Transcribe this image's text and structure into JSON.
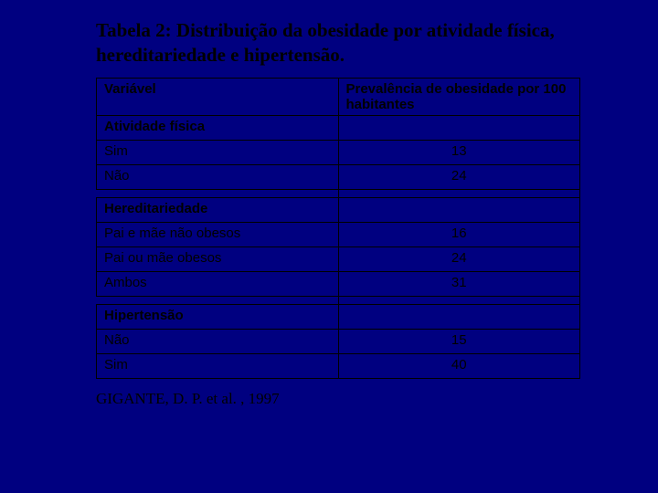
{
  "title": "Tabela 2: Distribuição da obesidade por atividade física, hereditariedade e hipertensão.",
  "headers": {
    "variable": "Variável",
    "prevalence": "Prevalência de obesidade por 100 habitantes"
  },
  "sections": {
    "activity": {
      "label": "Atividade física",
      "rows": {
        "sim": {
          "label": "Sim",
          "value": "13"
        },
        "nao": {
          "label": "Não",
          "value": "24"
        }
      }
    },
    "heredity": {
      "label": "Hereditariedade",
      "rows": {
        "none": {
          "label": "Pai e mãe não obesos",
          "value": "16"
        },
        "one": {
          "label": "Pai ou mãe obesos",
          "value": "24"
        },
        "both": {
          "label": "Ambos",
          "value": "31"
        }
      }
    },
    "hypertension": {
      "label": "Hipertensão",
      "rows": {
        "nao": {
          "label": "Não",
          "value": "15"
        },
        "sim": {
          "label": "Sim",
          "value": "40"
        }
      }
    }
  },
  "citation": "GIGANTE, D. P. et al. , 1997",
  "styling": {
    "background_color": "#000080",
    "text_color": "#000000",
    "border_color": "#000000",
    "title_font": "Times New Roman",
    "title_fontsize": 21,
    "table_font": "Arial",
    "table_fontsize": 15,
    "citation_font": "Times New Roman",
    "citation_fontsize": 17,
    "col_widths": [
      "50%",
      "50%"
    ]
  }
}
